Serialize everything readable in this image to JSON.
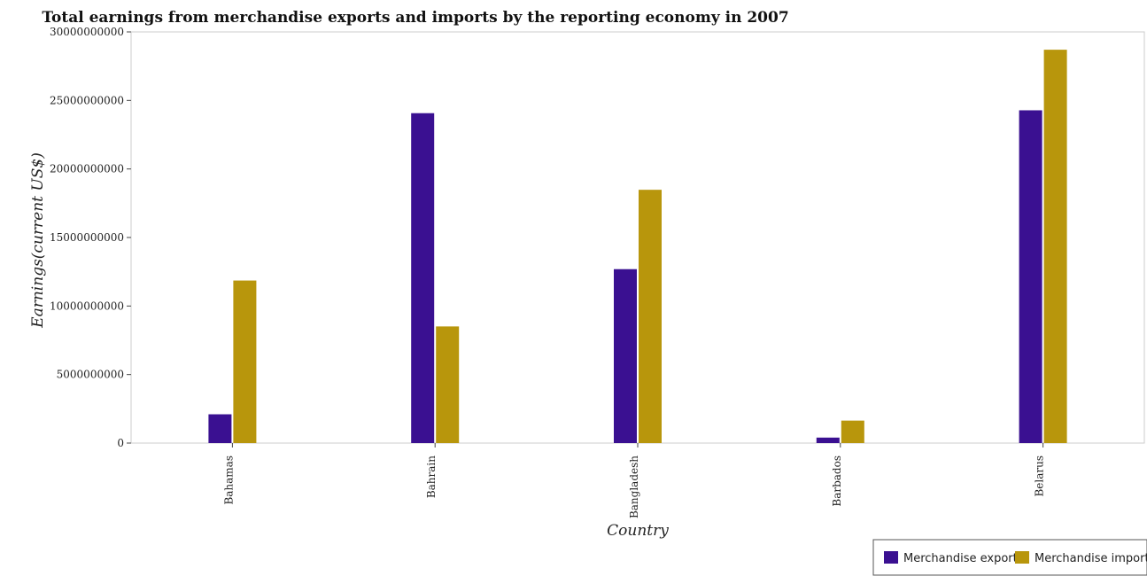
{
  "chart_data": {
    "type": "bar",
    "title": "Total earnings from merchandise exports and imports by the reporting economy in 2007",
    "xlabel": "Country",
    "ylabel": "Earnings(current US$)",
    "categories": [
      "Bahamas",
      "Bahrain",
      "Bangladesh",
      "Barbados",
      "Belarus"
    ],
    "ylim": [
      0,
      30000000000
    ],
    "yticks": [
      0,
      5000000000,
      10000000000,
      15000000000,
      20000000000,
      25000000000,
      30000000000
    ],
    "ytick_labels": [
      "0",
      "5000000000",
      "10000000000",
      "15000000000",
      "20000000000",
      "25000000000",
      "30000000000"
    ],
    "grid": false,
    "legend_position": "bottom-right",
    "series": [
      {
        "name": "Merchandise exports",
        "color": "#3a1091",
        "values": [
          2100000000,
          24070000000,
          12690000000,
          400000000,
          24280000000
        ]
      },
      {
        "name": "Merchandise imports",
        "color": "#b8960c",
        "values": [
          11860000000,
          8510000000,
          18480000000,
          1640000000,
          28700000000
        ]
      }
    ]
  }
}
